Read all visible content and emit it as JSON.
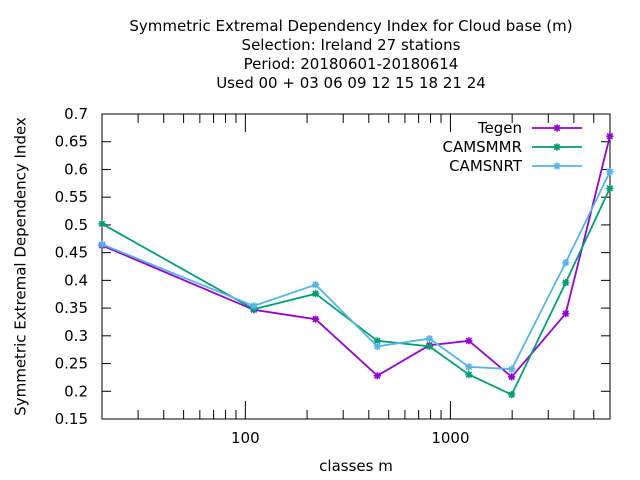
{
  "chart_data": {
    "type": "line",
    "title_lines": [
      "Symmetric Extremal Dependency Index  for Cloud base (m)",
      "Selection: Ireland      27 stations",
      "Period: 20180601-20180614",
      "Used  00 + 03 06 09 12 15 18 21 24"
    ],
    "xlabel": "classes m",
    "ylabel": "Symmetric Extremal Dependency Index",
    "x_scale": "log",
    "xlim": [
      20,
      6000
    ],
    "ylim": [
      0.15,
      0.7
    ],
    "x_ticks": [
      100,
      1000
    ],
    "x_tick_labels": [
      "100",
      "1000"
    ],
    "y_ticks": [
      0.15,
      0.2,
      0.25,
      0.3,
      0.35,
      0.4,
      0.45,
      0.5,
      0.55,
      0.6,
      0.65,
      0.7
    ],
    "y_tick_labels": [
      "0.15",
      "0.2",
      "0.25",
      "0.3",
      "0.35",
      "0.4",
      "0.45",
      "0.5",
      "0.55",
      "0.6",
      "0.65",
      "0.7"
    ],
    "grid": false,
    "legend_position": "top-right",
    "x": [
      20,
      110,
      220,
      440,
      790,
      1230,
      1990,
      3650,
      5990
    ],
    "series": [
      {
        "name": "Tegen",
        "color": "#9400d3",
        "values": [
          0.463,
          0.347,
          0.33,
          0.228,
          0.283,
          0.291,
          0.226,
          0.34,
          0.66
        ]
      },
      {
        "name": "CAMSMMR",
        "color": "#009e73",
        "values": [
          0.502,
          0.348,
          0.376,
          0.291,
          0.281,
          0.23,
          0.194,
          0.396,
          0.566
        ]
      },
      {
        "name": "CAMSNRT",
        "color": "#56b4e9",
        "values": [
          0.465,
          0.354,
          0.392,
          0.281,
          0.295,
          0.244,
          0.24,
          0.432,
          0.596
        ]
      }
    ]
  }
}
